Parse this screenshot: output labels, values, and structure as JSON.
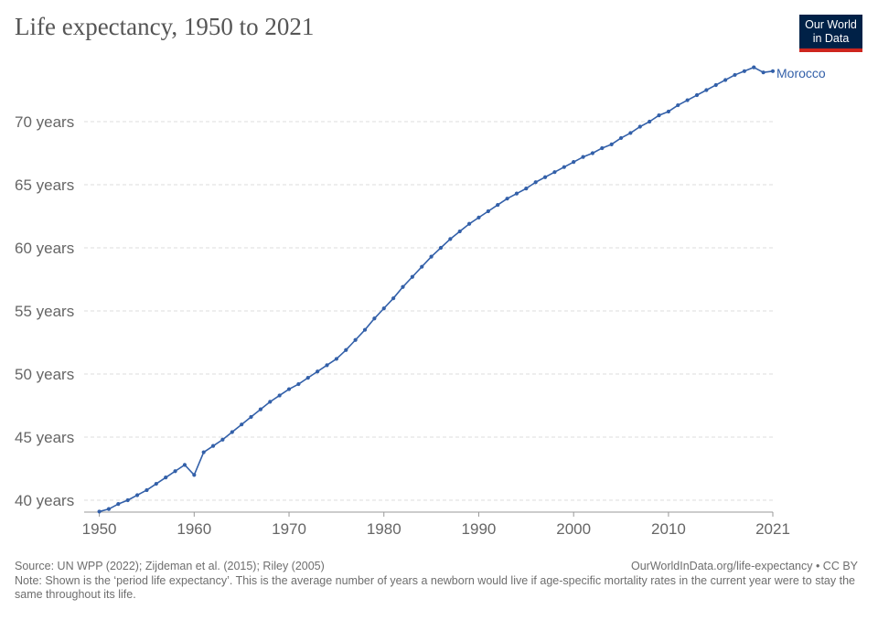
{
  "header": {
    "title": "Life expectancy, 1950 to 2021",
    "logo_line1": "Our World",
    "logo_line2": "in Data"
  },
  "chart_data": {
    "type": "line",
    "title": "Life expectancy, 1950 to 2021",
    "xlabel": "",
    "ylabel": "",
    "x_ticks": [
      1950,
      1960,
      1970,
      1980,
      1990,
      2000,
      2010,
      2021
    ],
    "y_ticks": [
      40,
      45,
      50,
      55,
      60,
      65,
      70
    ],
    "y_tick_suffix": " years",
    "xlim": [
      1950,
      2021
    ],
    "grid": "horizontal dashed",
    "colors": {
      "line": "#3360a9",
      "grid": "#dddddd",
      "axis_text": "#666666"
    },
    "series": [
      {
        "name": "Morocco",
        "x": [
          1950,
          1951,
          1952,
          1953,
          1954,
          1955,
          1956,
          1957,
          1958,
          1959,
          1960,
          1961,
          1962,
          1963,
          1964,
          1965,
          1966,
          1967,
          1968,
          1969,
          1970,
          1971,
          1972,
          1973,
          1974,
          1975,
          1976,
          1977,
          1978,
          1979,
          1980,
          1981,
          1982,
          1983,
          1984,
          1985,
          1986,
          1987,
          1988,
          1989,
          1990,
          1991,
          1992,
          1993,
          1994,
          1995,
          1996,
          1997,
          1998,
          1999,
          2000,
          2001,
          2002,
          2003,
          2004,
          2005,
          2006,
          2007,
          2008,
          2009,
          2010,
          2011,
          2012,
          2013,
          2014,
          2015,
          2016,
          2017,
          2018,
          2019,
          2020,
          2021
        ],
        "values": [
          39.1,
          39.3,
          39.7,
          40.0,
          40.4,
          40.8,
          41.3,
          41.8,
          42.3,
          42.8,
          42.0,
          43.8,
          44.3,
          44.8,
          45.4,
          46.0,
          46.6,
          47.2,
          47.8,
          48.3,
          48.8,
          49.2,
          49.7,
          50.2,
          50.7,
          51.2,
          51.9,
          52.7,
          53.5,
          54.4,
          55.2,
          56.0,
          56.9,
          57.7,
          58.5,
          59.3,
          60.0,
          60.7,
          61.3,
          61.9,
          62.4,
          62.9,
          63.4,
          63.9,
          64.3,
          64.7,
          65.2,
          65.6,
          66.0,
          66.4,
          66.8,
          67.2,
          67.5,
          67.9,
          68.2,
          68.7,
          69.1,
          69.6,
          70.0,
          70.5,
          70.8,
          71.3,
          71.7,
          72.1,
          72.5,
          72.9,
          73.3,
          73.7,
          74.0,
          74.3,
          73.9,
          74.0
        ]
      }
    ]
  },
  "footer": {
    "source": "Source: UN WPP (2022); Zijdeman et al. (2015); Riley (2005)",
    "url": "OurWorldInData.org/life-expectancy • CC BY",
    "note": "Note: Shown is the ‘period life expectancy’. This is the average number of years a newborn would live if age-specific mortality rates in the current year were to stay the same throughout its life."
  }
}
